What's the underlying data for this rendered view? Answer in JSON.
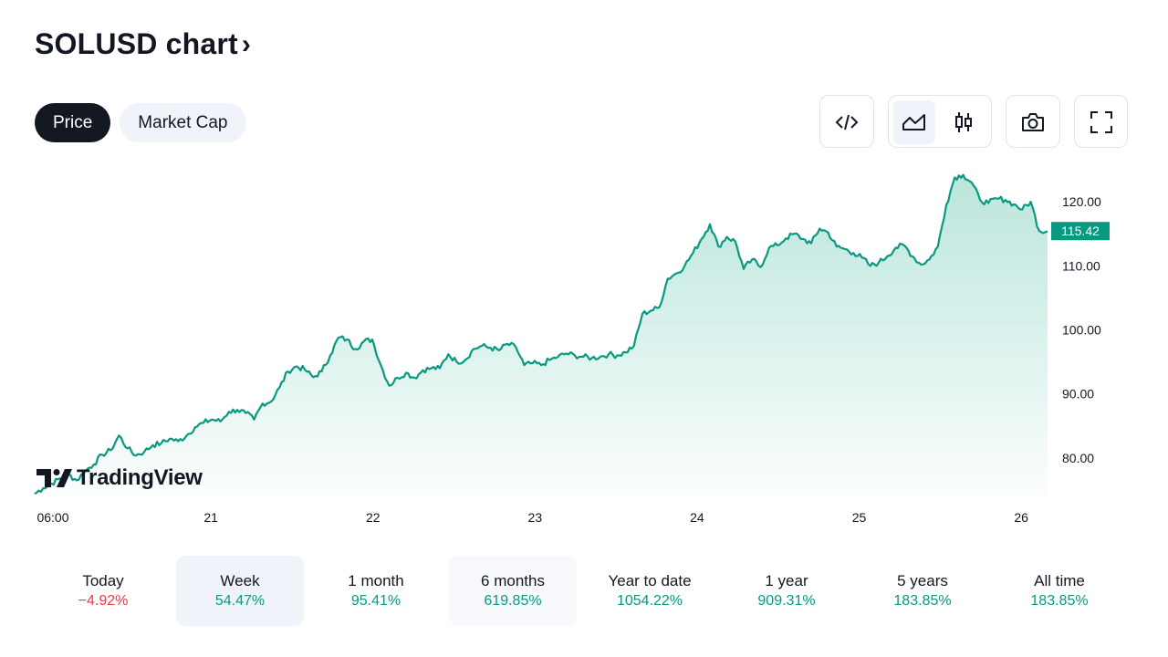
{
  "header": {
    "title": "SOLUSD chart",
    "chevron": "›"
  },
  "tabs": [
    {
      "label": "Price",
      "active": true
    },
    {
      "label": "Market Cap",
      "active": false
    }
  ],
  "toolbar": {
    "embed_icon": "code-icon",
    "area_icon": "area-chart-icon",
    "candle_icon": "candlestick-icon",
    "snapshot_icon": "camera-icon",
    "fullscreen_icon": "fullscreen-icon",
    "selected_chart_style": "area"
  },
  "brand": {
    "logo_text": "TradingView"
  },
  "colors": {
    "line": "#089981",
    "fill_top": "#b7e4da",
    "negative": "#f23645",
    "price_badge": "#089981"
  },
  "chart_data": {
    "type": "area",
    "xlabel": "",
    "ylabel": "",
    "x_tick_labels": [
      "06:00",
      "21",
      "22",
      "23",
      "24",
      "25",
      "26"
    ],
    "y_tick_labels": [
      "120.00",
      "110.00",
      "100.00",
      "90.00",
      "80.00"
    ],
    "ylim": [
      74.0,
      125.0
    ],
    "last_price": "115.42",
    "grid": false,
    "series": [
      {
        "values": [
          74.4,
          75.3,
          76.0,
          76.8,
          77.4,
          76.5,
          78.0,
          79.0,
          80.5,
          81.2,
          83.5,
          81.5,
          80.4,
          81.0,
          82.0,
          82.3,
          83.0,
          82.6,
          83.5,
          84.8,
          85.5,
          86.0,
          85.7,
          87.2,
          87.5,
          87.0,
          86.0,
          88.5,
          88.8,
          91.0,
          93.5,
          94.3,
          93.8,
          92.6,
          93.5,
          96.0,
          98.8,
          98.5,
          97.0,
          98.2,
          98.5,
          94.5,
          91.3,
          92.5,
          93.3,
          92.5,
          93.7,
          94.0,
          94.0,
          96.2,
          95.0,
          95.3,
          97.0,
          97.5,
          97.2,
          96.8,
          97.8,
          97.3,
          94.5,
          94.8,
          94.5,
          95.3,
          95.8,
          96.3,
          96.0,
          95.8,
          95.6,
          95.8,
          96.2,
          96.0,
          96.5,
          97.5,
          102.5,
          103.0,
          103.5,
          108.0,
          108.8,
          110.0,
          112.0,
          114.2,
          116.5,
          113.0,
          114.5,
          113.8,
          109.5,
          111.0,
          109.8,
          112.8,
          113.2,
          114.3,
          115.0,
          114.2,
          113.5,
          115.8,
          115.2,
          113.0,
          112.6,
          112.0,
          111.3,
          110.0,
          110.5,
          111.5,
          112.8,
          113.2,
          111.5,
          110.2,
          111.0,
          113.0,
          119.5,
          123.8,
          124.2,
          123.0,
          120.3,
          119.8,
          120.5,
          120.3,
          119.6,
          118.8,
          120.0,
          115.5,
          115.4
        ]
      }
    ]
  },
  "periods": [
    {
      "label": "Today",
      "value": "−4.92%",
      "sign": "neg",
      "state": ""
    },
    {
      "label": "Week",
      "value": "54.47%",
      "sign": "pos",
      "state": "sel"
    },
    {
      "label": "1 month",
      "value": "95.41%",
      "sign": "pos",
      "state": ""
    },
    {
      "label": "6 months",
      "value": "619.85%",
      "sign": "pos",
      "state": "hov"
    },
    {
      "label": "Year to date",
      "value": "1054.22%",
      "sign": "pos",
      "state": ""
    },
    {
      "label": "1 year",
      "value": "909.31%",
      "sign": "pos",
      "state": ""
    },
    {
      "label": "5 years",
      "value": "183.85%",
      "sign": "pos",
      "state": ""
    },
    {
      "label": "All time",
      "value": "183.85%",
      "sign": "pos",
      "state": ""
    }
  ]
}
